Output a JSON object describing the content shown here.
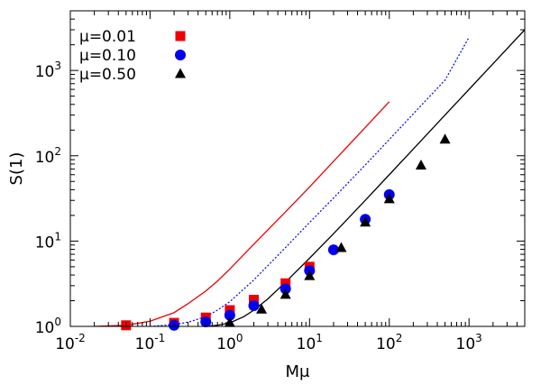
{
  "chart_data": {
    "type": "scatter",
    "xlabel": "Mμ",
    "ylabel": "S(1)",
    "xscale": "log",
    "yscale": "log",
    "xlim": [
      0.01,
      5000
    ],
    "ylim": [
      1,
      5000
    ],
    "grid": false,
    "legend_position": "top-left",
    "x_ticks": [
      {
        "base": "10",
        "exp": "-2",
        "value": 0.01
      },
      {
        "base": "10",
        "exp": "-1",
        "value": 0.1
      },
      {
        "base": "10",
        "exp": "0",
        "value": 1
      },
      {
        "base": "10",
        "exp": "1",
        "value": 10
      },
      {
        "base": "10",
        "exp": "2",
        "value": 100
      },
      {
        "base": "10",
        "exp": "3",
        "value": 1000
      }
    ],
    "y_ticks": [
      {
        "base": "10",
        "exp": "0",
        "value": 1
      },
      {
        "base": "10",
        "exp": "1",
        "value": 10
      },
      {
        "base": "10",
        "exp": "2",
        "value": 100
      },
      {
        "base": "10",
        "exp": "3",
        "value": 1000
      }
    ],
    "series": [
      {
        "name": "μ=0.01",
        "color": "#ee0000",
        "marker": "square",
        "points": [
          [
            0.05,
            1.03
          ],
          [
            0.2,
            1.1
          ],
          [
            0.5,
            1.27
          ],
          [
            1,
            1.55
          ],
          [
            2,
            2.05
          ],
          [
            5,
            3.2
          ],
          [
            10,
            5.0
          ]
        ]
      },
      {
        "name": "μ=0.10",
        "color": "#0000ee",
        "marker": "circle",
        "points": [
          [
            0.2,
            1.03
          ],
          [
            0.5,
            1.13
          ],
          [
            1,
            1.35
          ],
          [
            2,
            1.75
          ],
          [
            5,
            2.75
          ],
          [
            10,
            4.5
          ],
          [
            20,
            7.9
          ],
          [
            50,
            18
          ],
          [
            100,
            35
          ]
        ]
      },
      {
        "name": "μ=0.50",
        "color": "#000000",
        "marker": "triangle",
        "points": [
          [
            1,
            1.1
          ],
          [
            2.5,
            1.58
          ],
          [
            5,
            2.35
          ],
          [
            10,
            3.9
          ],
          [
            25,
            8.3
          ],
          [
            50,
            16.5
          ],
          [
            100,
            31
          ],
          [
            250,
            77
          ],
          [
            500,
            155
          ]
        ]
      }
    ],
    "curves": [
      {
        "color": "#ee0000",
        "style": "solid",
        "points": [
          [
            0.02,
            1.0
          ],
          [
            0.05,
            1.03
          ],
          [
            0.1,
            1.15
          ],
          [
            0.2,
            1.45
          ],
          [
            0.3,
            1.85
          ],
          [
            0.5,
            2.6
          ],
          [
            0.7,
            3.4
          ],
          [
            1,
            4.7
          ],
          [
            2,
            9.2
          ],
          [
            5,
            22
          ],
          [
            10,
            43
          ],
          [
            20,
            86
          ],
          [
            50,
            215
          ],
          [
            100,
            430
          ]
        ]
      },
      {
        "color": "#0000ee",
        "style": "dotted",
        "points": [
          [
            0.1,
            1.0
          ],
          [
            0.2,
            1.05
          ],
          [
            0.3,
            1.12
          ],
          [
            0.5,
            1.3
          ],
          [
            0.7,
            1.55
          ],
          [
            1,
            1.95
          ],
          [
            2,
            3.5
          ],
          [
            5,
            8.4
          ],
          [
            10,
            16.5
          ],
          [
            20,
            32
          ],
          [
            50,
            78
          ],
          [
            100,
            155
          ],
          [
            200,
            310
          ],
          [
            500,
            770
          ],
          [
            1000,
            2450
          ]
        ]
      },
      {
        "color": "#000000",
        "style": "solid",
        "points": [
          [
            0.5,
            1.0
          ],
          [
            0.7,
            1.03
          ],
          [
            1,
            1.1
          ],
          [
            1.5,
            1.3
          ],
          [
            2,
            1.55
          ],
          [
            3,
            2.1
          ],
          [
            5,
            3.3
          ],
          [
            10,
            6.3
          ],
          [
            20,
            12.2
          ],
          [
            50,
            30
          ],
          [
            100,
            60
          ],
          [
            200,
            120
          ],
          [
            500,
            300
          ],
          [
            1000,
            600
          ],
          [
            2000,
            1200
          ],
          [
            5000,
            3000
          ]
        ]
      }
    ]
  }
}
